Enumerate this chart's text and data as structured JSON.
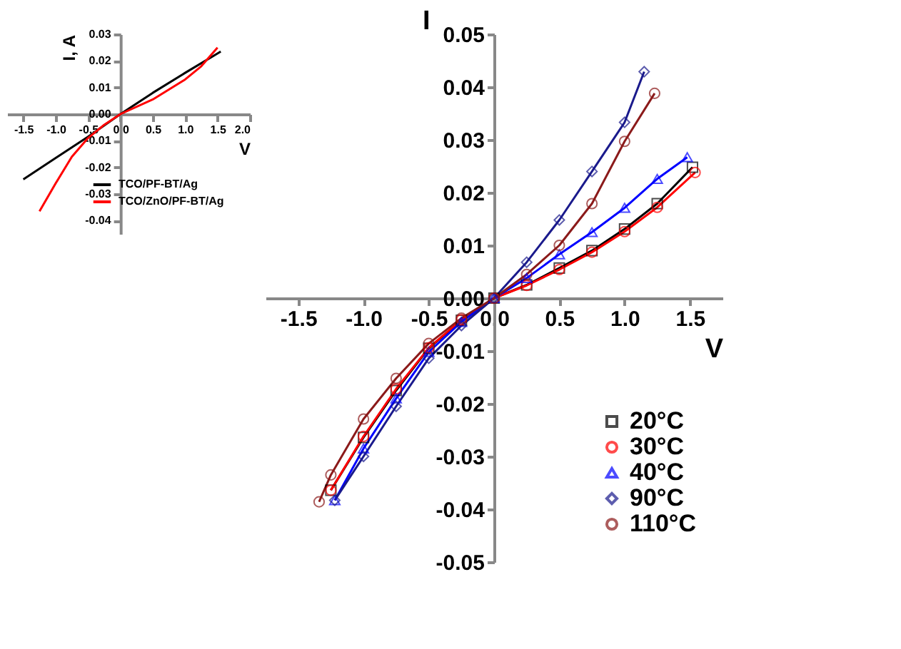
{
  "chart_data": [
    {
      "type": "line",
      "xlabel": "V",
      "ylabel": "I",
      "xlim": [
        -1.75,
        1.75
      ],
      "ylim": [
        -0.05,
        0.05
      ],
      "xticks": [
        -1.5,
        {
          "value": -1.0,
          "label": "-1.0"
        },
        -0.5,
        {
          "value": 0,
          "label": "0.0"
        },
        0.5,
        {
          "value": 1.0,
          "label": "1.0"
        },
        1.5
      ],
      "yticks": [
        -0.05,
        -0.04,
        -0.03,
        -0.02,
        -0.01,
        {
          "value": 0,
          "label": "0.00"
        },
        0.01,
        0.02,
        0.03,
        0.04,
        0.05
      ],
      "grid": false,
      "legend": "bottom right",
      "line_style": "solid",
      "series": [
        {
          "name": "20°C",
          "color": "#000000",
          "marker": "square",
          "x": [
            -1.25,
            -1.0,
            -0.75,
            -0.5,
            -0.25,
            0,
            0.25,
            0.5,
            0.75,
            1.0,
            1.25,
            1.52
          ],
          "values": [
            -0.0364,
            -0.0264,
            -0.0175,
            -0.0095,
            -0.0042,
            0,
            0.0025,
            0.0057,
            0.009,
            0.0131,
            0.0179,
            0.0248
          ]
        },
        {
          "name": "30°C",
          "color": "#ff0000",
          "marker": "circle",
          "x": [
            -1.25,
            -1.0,
            -0.75,
            -0.5,
            -0.25,
            0,
            0.25,
            0.5,
            0.75,
            1.0,
            1.25,
            1.54
          ],
          "values": [
            -0.0364,
            -0.0262,
            -0.0172,
            -0.0094,
            -0.0041,
            0,
            0.0024,
            0.0054,
            0.0087,
            0.0126,
            0.0172,
            0.0238
          ]
        },
        {
          "name": "40°C",
          "color": "#0000ff",
          "marker": "triangle",
          "x": [
            -1.22,
            -1.0,
            -0.75,
            -0.5,
            -0.25,
            0,
            0.25,
            0.5,
            0.75,
            1.0,
            1.25,
            1.48
          ],
          "values": [
            -0.0383,
            -0.0285,
            -0.019,
            -0.0102,
            -0.0045,
            0,
            0.0038,
            0.0083,
            0.0125,
            0.0171,
            0.0226,
            0.0267
          ]
        },
        {
          "name": "90°C",
          "color": "#1a1a8c",
          "marker": "diamond",
          "x": [
            -1.22,
            -1.0,
            -0.75,
            -0.5,
            -0.25,
            0,
            0.25,
            0.5,
            0.75,
            1.0,
            1.15
          ],
          "values": [
            -0.0383,
            -0.03,
            -0.0205,
            -0.0114,
            -0.0052,
            0,
            0.0068,
            0.0148,
            0.024,
            0.0333,
            0.0429
          ]
        },
        {
          "name": "110°C",
          "color": "#8b1a1a",
          "marker": "circle",
          "x": [
            -1.34,
            -1.25,
            -1.0,
            -0.75,
            -0.5,
            -0.25,
            0,
            0.25,
            0.5,
            0.75,
            1.0,
            1.23
          ],
          "values": [
            -0.0386,
            -0.0335,
            -0.0229,
            -0.0152,
            -0.0086,
            -0.0038,
            0,
            0.0045,
            0.01,
            0.0179,
            0.0297,
            0.0388
          ]
        }
      ]
    },
    {
      "type": "line",
      "xlabel": "V",
      "ylabel": "I, A",
      "xlim": [
        -1.75,
        2.0
      ],
      "ylim": [
        -0.045,
        0.03
      ],
      "xticks": [
        -1.5,
        {
          "value": -1.0,
          "label": "-1.0"
        },
        -0.5,
        {
          "value": 0,
          "label": "0.0"
        },
        0.5,
        {
          "value": 1.0,
          "label": "1.0"
        },
        1.5,
        {
          "value": 2.0,
          "label": "2.0"
        }
      ],
      "yticks": [
        -0.04,
        -0.03,
        -0.02,
        -0.01,
        {
          "value": 0,
          "label": "0.00"
        },
        0.01,
        0.02,
        0.03
      ],
      "grid": false,
      "legend": "bottom right",
      "line_style": "solid",
      "series": [
        {
          "name": "TCO/PF-BT/Ag",
          "color": "#000000",
          "x": [
            -1.5,
            -1.0,
            -0.5,
            0,
            0.5,
            1.0,
            1.55
          ],
          "values": [
            -0.0245,
            -0.0165,
            -0.0085,
            0,
            0.008,
            0.0155,
            0.0235
          ]
        },
        {
          "name": "TCO/ZnO/PF-BT/Ag",
          "color": "#ff0000",
          "x": [
            -1.25,
            -1.0,
            -0.75,
            -0.5,
            -0.25,
            0,
            0.5,
            1.0,
            1.25,
            1.5
          ],
          "values": [
            -0.0365,
            -0.026,
            -0.016,
            -0.009,
            -0.004,
            0,
            0.0055,
            0.013,
            0.018,
            0.025
          ]
        }
      ]
    }
  ]
}
